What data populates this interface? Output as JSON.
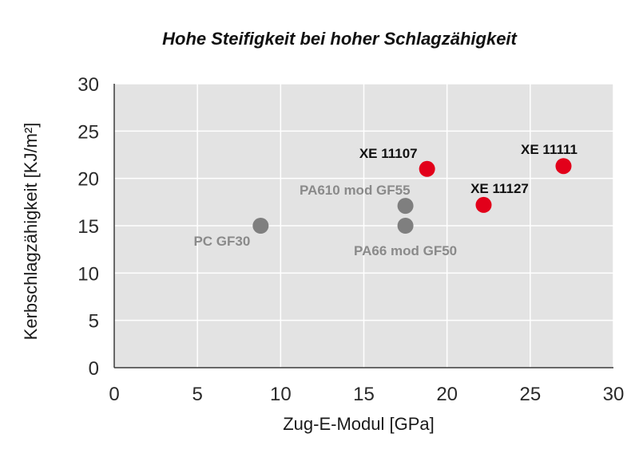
{
  "chart_data": {
    "type": "scatter",
    "title": "Hohe Steifigkeit bei hoher Schlagzähigkeit",
    "xlabel": "Zug-E-Modul [GPa]",
    "ylabel": "Kerbschlagzähigkeit [KJ/m²]",
    "xlim": [
      0,
      30
    ],
    "ylim": [
      0,
      30
    ],
    "x_ticks": [
      "0",
      "5",
      "10",
      "15",
      "20",
      "25",
      "30"
    ],
    "y_ticks": [
      "0",
      "5",
      "10",
      "15",
      "20",
      "25",
      "30"
    ],
    "grid": true,
    "colors": {
      "plot_bg": "#e3e3e3",
      "grid": "#ffffff",
      "grey_point": "#7f7f7f",
      "red_point": "#e2001a",
      "grey_label": "#8a8a8a",
      "red_label": "#111111"
    },
    "points": [
      {
        "name": "PC GF30",
        "x": 8.8,
        "y": 15.0,
        "series": "reference"
      },
      {
        "name": "PA610 mod GF55",
        "x": 17.5,
        "y": 17.1,
        "series": "reference"
      },
      {
        "name": "PA66 mod GF50",
        "x": 17.5,
        "y": 15.0,
        "series": "reference"
      },
      {
        "name": "XE 11107",
        "x": 18.8,
        "y": 21.0,
        "series": "XE"
      },
      {
        "name": "XE 11127",
        "x": 22.2,
        "y": 17.2,
        "series": "XE"
      },
      {
        "name": "XE 11111",
        "x": 27.0,
        "y": 21.3,
        "series": "XE"
      }
    ]
  }
}
